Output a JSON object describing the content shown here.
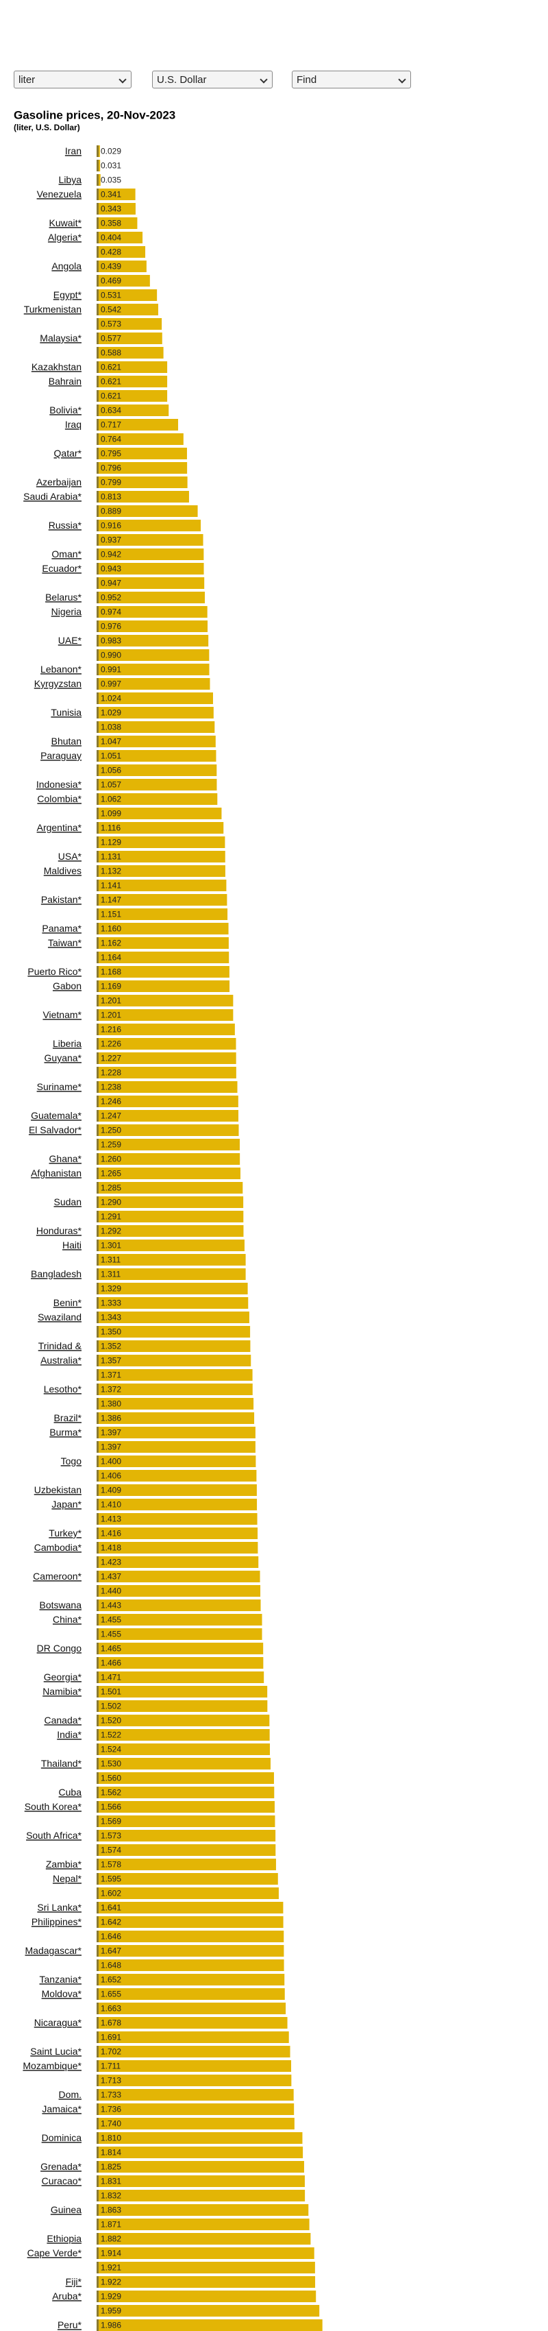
{
  "controls": {
    "unit": "liter",
    "currency": "U.S. Dollar",
    "find": "Find"
  },
  "chart_data": {
    "type": "barh",
    "title": "Gasoline prices, 20-Nov-2023",
    "subtitle": "(liter, U.S. Dollar)",
    "color": "#e3b505",
    "categories": [
      "Iran",
      null,
      "Libya",
      "Venezuela",
      null,
      "Kuwait*",
      "Algeria*",
      null,
      "Angola",
      null,
      "Egypt*",
      "Turkmenistan",
      null,
      "Malaysia*",
      null,
      "Kazakhstan",
      "Bahrain",
      null,
      "Bolivia*",
      "Iraq",
      null,
      "Qatar*",
      null,
      "Azerbaijan",
      "Saudi Arabia*",
      null,
      "Russia*",
      null,
      "Oman*",
      "Ecuador*",
      null,
      "Belarus*",
      "Nigeria",
      null,
      "UAE*",
      null,
      "Lebanon*",
      "Kyrgyzstan",
      null,
      "Tunisia",
      null,
      "Bhutan",
      "Paraguay",
      null,
      "Indonesia*",
      "Colombia*",
      null,
      "Argentina*",
      null,
      "USA*",
      "Maldives",
      null,
      "Pakistan*",
      null,
      "Panama*",
      "Taiwan*",
      null,
      "Puerto Rico*",
      "Gabon",
      null,
      "Vietnam*",
      null,
      "Liberia",
      "Guyana*",
      null,
      "Suriname*",
      null,
      "Guatemala*",
      "El Salvador*",
      null,
      "Ghana*",
      "Afghanistan",
      null,
      "Sudan",
      null,
      "Honduras*",
      "Haiti",
      null,
      "Bangladesh",
      null,
      "Benin*",
      "Swaziland",
      null,
      "Trinidad &",
      "Australia*",
      null,
      "Lesotho*",
      null,
      "Brazil*",
      "Burma*",
      null,
      "Togo",
      null,
      "Uzbekistan",
      "Japan*",
      null,
      "Turkey*",
      "Cambodia*",
      null,
      "Cameroon*",
      null,
      "Botswana",
      "China*",
      null,
      "DR Congo",
      null,
      "Georgia*",
      "Namibia*",
      null,
      "Canada*",
      "India*",
      null,
      "Thailand*",
      null,
      "Cuba",
      "South Korea*",
      null,
      "South Africa*",
      null,
      "Zambia*",
      "Nepal*",
      null,
      "Sri Lanka*",
      "Philippines*",
      null,
      "Madagascar*",
      null,
      "Tanzania*",
      "Moldova*",
      null,
      "Nicaragua*",
      null,
      "Saint Lucia*",
      "Mozambique*",
      null,
      "Dom.",
      "Jamaica*",
      null,
      "Dominica",
      null,
      "Grenada*",
      "Curacao*",
      null,
      "Guinea",
      null,
      "Ethiopia",
      "Cape Verde*",
      null,
      "Fiji*",
      "Aruba*",
      null,
      "Peru*"
    ],
    "values": [
      0.029,
      0.031,
      0.035,
      0.341,
      0.343,
      0.358,
      0.404,
      0.428,
      0.439,
      0.469,
      0.531,
      0.542,
      0.573,
      0.577,
      0.588,
      0.621,
      0.621,
      0.621,
      0.634,
      0.717,
      0.764,
      0.795,
      0.796,
      0.799,
      0.813,
      0.889,
      0.916,
      0.937,
      0.942,
      0.943,
      0.947,
      0.952,
      0.974,
      0.976,
      0.983,
      0.99,
      0.991,
      0.997,
      1.024,
      1.029,
      1.038,
      1.047,
      1.051,
      1.056,
      1.057,
      1.062,
      1.099,
      1.116,
      1.129,
      1.131,
      1.132,
      1.141,
      1.147,
      1.151,
      1.16,
      1.162,
      1.164,
      1.168,
      1.169,
      1.201,
      1.201,
      1.216,
      1.226,
      1.227,
      1.228,
      1.238,
      1.246,
      1.247,
      1.25,
      1.259,
      1.26,
      1.265,
      1.285,
      1.29,
      1.291,
      1.292,
      1.301,
      1.311,
      1.311,
      1.329,
      1.333,
      1.343,
      1.35,
      1.352,
      1.357,
      1.371,
      1.372,
      1.38,
      1.386,
      1.397,
      1.397,
      1.4,
      1.406,
      1.409,
      1.41,
      1.413,
      1.416,
      1.418,
      1.423,
      1.437,
      1.44,
      1.443,
      1.455,
      1.455,
      1.465,
      1.466,
      1.471,
      1.501,
      1.502,
      1.52,
      1.522,
      1.524,
      1.53,
      1.56,
      1.562,
      1.566,
      1.569,
      1.573,
      1.574,
      1.578,
      1.595,
      1.602,
      1.641,
      1.642,
      1.646,
      1.647,
      1.648,
      1.652,
      1.655,
      1.663,
      1.678,
      1.691,
      1.702,
      1.711,
      1.713,
      1.733,
      1.736,
      1.74,
      1.81,
      1.814,
      1.825,
      1.831,
      1.832,
      1.863,
      1.871,
      1.882,
      1.914,
      1.921,
      1.922,
      1.929,
      1.959,
      1.986
    ],
    "value_labels": [
      "0.029",
      "0.031",
      "0.035",
      "0.341",
      "0.343",
      "0.358",
      "0.404",
      "0.428",
      "0.439",
      "0.469",
      "0.531",
      "0.542",
      "0.573",
      "0.577",
      "0.588",
      "0.621",
      "0.621",
      "0.621",
      "0.634",
      "0.717",
      "0.764",
      "0.795",
      "0.796",
      "0.799",
      "0.813",
      "0.889",
      "0.916",
      "0.937",
      "0.942",
      "0.943",
      "0.947",
      "0.952",
      "0.974",
      "0.976",
      "0.983",
      "0.990",
      "0.991",
      "0.997",
      "1.024",
      "1.029",
      "1.038",
      "1.047",
      "1.051",
      "1.056",
      "1.057",
      "1.062",
      "1.099",
      "1.116",
      "1.129",
      "1.131",
      "1.132",
      "1.141",
      "1.147",
      "1.151",
      "1.160",
      "1.162",
      "1.164",
      "1.168",
      "1.169",
      "1.201",
      "1.201",
      "1.216",
      "1.226",
      "1.227",
      "1.228",
      "1.238",
      "1.246",
      "1.247",
      "1.250",
      "1.259",
      "1.260",
      "1.265",
      "1.285",
      "1.290",
      "1.291",
      "1.292",
      "1.301",
      "1.311",
      "1.311",
      "1.329",
      "1.333",
      "1.343",
      "1.350",
      "1.352",
      "1.357",
      "1.371",
      "1.372",
      "1.380",
      "1.386",
      "1.397",
      "1.397",
      "1.400",
      "1.406",
      "1.409",
      "1.410",
      "1.413",
      "1.416",
      "1.418",
      "1.423",
      "1.437",
      "1.440",
      "1.443",
      "1.455",
      "1.455",
      "1.465",
      "1.466",
      "1.471",
      "1.501",
      "1.502",
      "1.520",
      "1.522",
      "1.524",
      "1.530",
      "1.560",
      "1.562",
      "1.566",
      "1.569",
      "1.573",
      "1.574",
      "1.578",
      "1.595",
      "1.602",
      "1.641",
      "1.642",
      "1.646",
      "1.647",
      "1.648",
      "1.652",
      "1.655",
      "1.663",
      "1.678",
      "1.691",
      "1.702",
      "1.711",
      "1.713",
      "1.733",
      "1.736",
      "1.740",
      "1.810",
      "1.814",
      "1.825",
      "1.831",
      "1.832",
      "1.863",
      "1.871",
      "1.882",
      "1.914",
      "1.921",
      "1.922",
      "1.929",
      "1.959",
      "1.986"
    ]
  }
}
